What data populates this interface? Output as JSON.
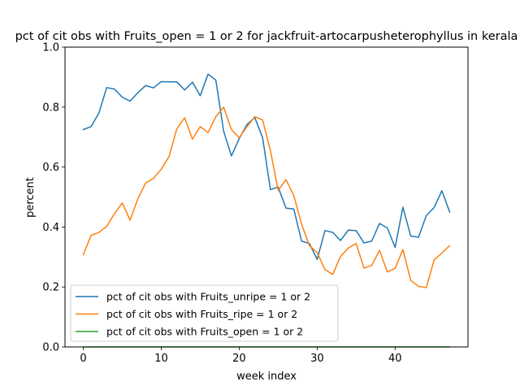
{
  "chart_data": {
    "type": "line",
    "title": "pct of cit obs with Fruits_open = 1 or 2 for jackfruit-artocarpusheterophyllus in kerala",
    "xlabel": "week index",
    "ylabel": "percent",
    "xlim": [
      -2.35,
      49.35
    ],
    "ylim": [
      0.0,
      1.0
    ],
    "xticks": [
      0,
      10,
      20,
      30,
      40
    ],
    "yticks": [
      0.0,
      0.2,
      0.4,
      0.6,
      0.8,
      1.0
    ],
    "grid": false,
    "legend_position": "lower-left",
    "x": [
      0,
      1,
      2,
      3,
      4,
      5,
      6,
      7,
      8,
      9,
      10,
      11,
      12,
      13,
      14,
      15,
      16,
      17,
      18,
      19,
      20,
      21,
      22,
      23,
      24,
      25,
      26,
      27,
      28,
      29,
      30,
      31,
      32,
      33,
      34,
      35,
      36,
      37,
      38,
      39,
      40,
      41,
      42,
      43,
      44,
      45,
      46,
      47
    ],
    "series": [
      {
        "name": "pct of cit obs with Fruits_unripe = 1 or 2",
        "color": "#1f77b4",
        "values": [
          0.725,
          0.735,
          0.78,
          0.865,
          0.86,
          0.833,
          0.82,
          0.848,
          0.872,
          0.864,
          0.885,
          0.884,
          0.884,
          0.857,
          0.883,
          0.838,
          0.91,
          0.89,
          0.72,
          0.637,
          0.695,
          0.742,
          0.765,
          0.698,
          0.525,
          0.533,
          0.463,
          0.46,
          0.353,
          0.345,
          0.292,
          0.388,
          0.382,
          0.355,
          0.39,
          0.388,
          0.347,
          0.353,
          0.412,
          0.397,
          0.332,
          0.466,
          0.37,
          0.366,
          0.438,
          0.465,
          0.521,
          0.45
        ]
      },
      {
        "name": "pct of cit obs with Fruits_ripe = 1 or 2",
        "color": "#ff7f0e",
        "values": [
          0.308,
          0.372,
          0.382,
          0.402,
          0.445,
          0.48,
          0.423,
          0.495,
          0.547,
          0.562,
          0.593,
          0.635,
          0.728,
          0.764,
          0.693,
          0.735,
          0.715,
          0.768,
          0.8,
          0.725,
          0.698,
          0.735,
          0.768,
          0.757,
          0.655,
          0.522,
          0.558,
          0.505,
          0.41,
          0.338,
          0.315,
          0.258,
          0.242,
          0.302,
          0.33,
          0.345,
          0.263,
          0.272,
          0.322,
          0.25,
          0.262,
          0.325,
          0.222,
          0.202,
          0.198,
          0.29,
          0.313,
          0.338
        ]
      },
      {
        "name": "pct of cit obs with Fruits_open = 1 or 2",
        "color": "#2ca02c",
        "values": [
          0,
          0,
          0,
          0,
          0,
          0,
          0,
          0,
          0,
          0,
          0,
          0,
          0,
          0,
          0,
          0,
          0,
          0,
          0,
          0,
          0,
          0,
          0,
          0,
          0,
          0,
          0,
          0,
          0,
          0,
          0,
          0,
          0,
          0,
          0,
          0,
          0,
          0,
          0,
          0,
          0,
          0,
          0,
          0,
          0,
          0,
          0,
          0
        ]
      }
    ]
  }
}
